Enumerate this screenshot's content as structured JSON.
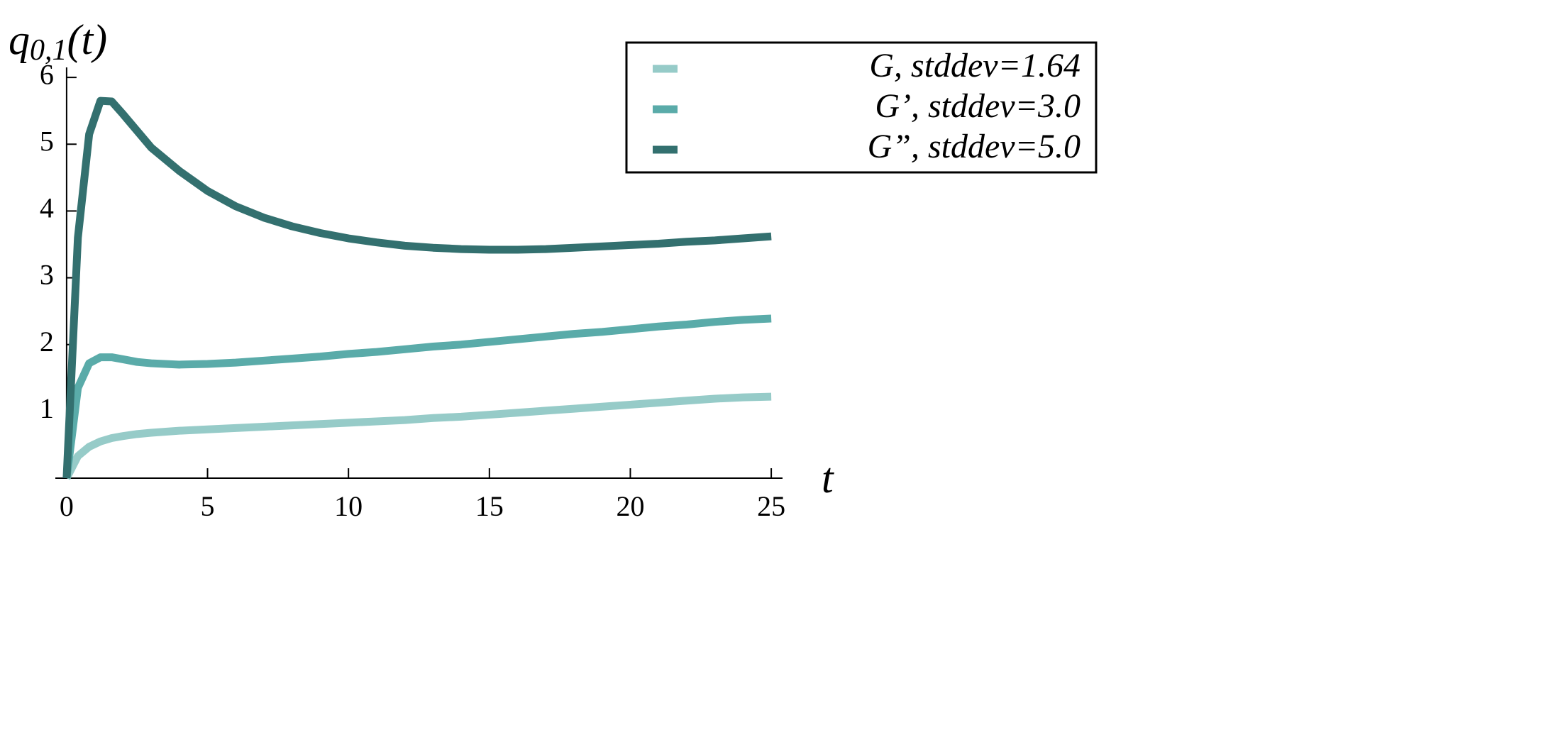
{
  "chart_data": {
    "type": "line",
    "y_label": {
      "base": "q",
      "subscript": "0,1",
      "suffix": "(t)"
    },
    "x_label": "t",
    "x": [
      0,
      0.4,
      0.8,
      1.2,
      1.6,
      2,
      2.5,
      3,
      4,
      5,
      6,
      7,
      8,
      9,
      10,
      11,
      12,
      13,
      14,
      15,
      16,
      17,
      18,
      19,
      20,
      21,
      22,
      23,
      24,
      25
    ],
    "series": [
      {
        "name": "G, stddev=1.64",
        "color": "#96cbc8",
        "values": [
          0,
          0.33,
          0.47,
          0.55,
          0.6,
          0.63,
          0.66,
          0.68,
          0.71,
          0.73,
          0.75,
          0.77,
          0.79,
          0.81,
          0.83,
          0.85,
          0.87,
          0.9,
          0.92,
          0.95,
          0.98,
          1.01,
          1.04,
          1.07,
          1.1,
          1.13,
          1.16,
          1.19,
          1.21,
          1.22
        ]
      },
      {
        "name": "G’, stddev=3.0",
        "color": "#5aaba9",
        "values": [
          0,
          1.35,
          1.72,
          1.81,
          1.81,
          1.78,
          1.74,
          1.72,
          1.7,
          1.71,
          1.73,
          1.76,
          1.79,
          1.82,
          1.86,
          1.89,
          1.93,
          1.97,
          2.0,
          2.04,
          2.08,
          2.12,
          2.16,
          2.19,
          2.23,
          2.27,
          2.3,
          2.34,
          2.37,
          2.39
        ]
      },
      {
        "name": "G”, stddev=5.0",
        "color": "#33706f",
        "values": [
          0,
          3.6,
          5.15,
          5.65,
          5.64,
          5.45,
          5.2,
          4.95,
          4.6,
          4.3,
          4.07,
          3.9,
          3.77,
          3.67,
          3.59,
          3.53,
          3.48,
          3.45,
          3.43,
          3.42,
          3.42,
          3.43,
          3.45,
          3.47,
          3.49,
          3.51,
          3.54,
          3.56,
          3.59,
          3.62
        ]
      }
    ],
    "xlim": [
      -0.4,
      25.4
    ],
    "ylim": [
      0,
      6.15
    ],
    "xticks": [
      0,
      5,
      10,
      15,
      20,
      25
    ],
    "yticks": [
      1,
      2,
      3,
      4,
      5,
      6
    ],
    "legend": "top-right",
    "grid": false
  }
}
